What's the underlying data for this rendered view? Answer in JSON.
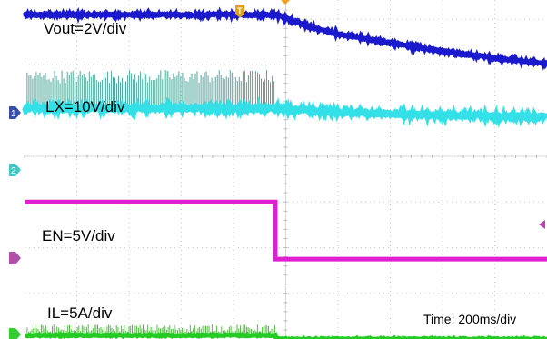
{
  "chart_data": {
    "type": "line",
    "title": "",
    "time_label": "Time: 200ms/div",
    "grid": true,
    "x_divisions": 10,
    "y_divisions": 8,
    "x_unit": "div",
    "y_unit": "div",
    "series": [
      {
        "name": "Vout=2V/div",
        "channel": 1,
        "color": "#1a1acc",
        "x": [
          0,
          1,
          2,
          3,
          4,
          4.8,
          5,
          5.5,
          6,
          7,
          8,
          9,
          10
        ],
        "y": [
          7.1,
          7.1,
          7.1,
          7.1,
          7.1,
          7.1,
          7.02,
          6.82,
          6.68,
          6.48,
          6.3,
          6.15,
          6.03
        ]
      },
      {
        "name": "LX=10V/div",
        "channel": 2,
        "color": "#33e0e8",
        "x": [
          0,
          1,
          2,
          3,
          4,
          4.8,
          5,
          6,
          7,
          8,
          9,
          10
        ],
        "y": [
          5.05,
          5.05,
          5.05,
          5.05,
          5.05,
          5.05,
          5.03,
          4.97,
          4.93,
          4.9,
          4.88,
          4.87
        ],
        "switching_until_div": 4.8,
        "switching_peak_div": 5.9
      },
      {
        "name": "EN=5V/div",
        "channel": 3,
        "color": "#e020d0",
        "x": [
          0,
          4.8,
          4.8,
          10
        ],
        "y": [
          3.0,
          3.0,
          1.75,
          1.75
        ]
      },
      {
        "name": "IL=5A/div",
        "channel": 4,
        "color": "#22cc22",
        "x": [
          0,
          4.8,
          4.8,
          10
        ],
        "y": [
          0.08,
          0.08,
          0.0,
          0.0
        ],
        "ripple_until_div": 4.8
      }
    ],
    "channel_markers": [
      {
        "id": 1,
        "label": "1",
        "color": "#3a4fa8"
      },
      {
        "id": 2,
        "label": "2",
        "color": "#40c8c8"
      },
      {
        "id": 3,
        "label": "",
        "color": "#b050a8"
      },
      {
        "id": 4,
        "label": "",
        "color": "#33cc33"
      }
    ],
    "trigger_marker": {
      "label": "T",
      "color": "#e0a020"
    }
  }
}
